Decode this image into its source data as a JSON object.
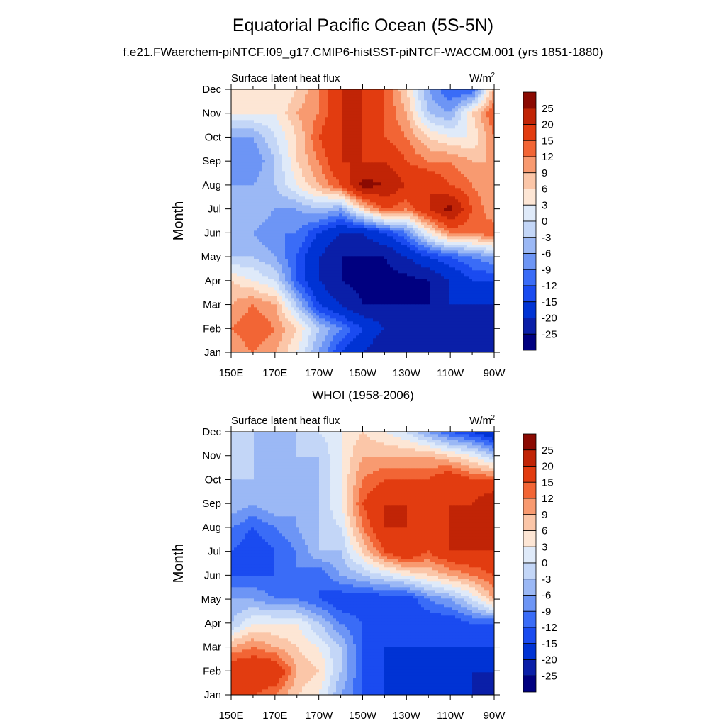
{
  "title": "Equatorial Pacific Ocean (5S-5N)",
  "subtitle": "f.e21.FWaerchem-piNTCF.f09_g17.CMIP6-histSST-piNTCF-WACCM.001 (yrs 1851-1880)",
  "panel2_title": "WHOI (1958-2006)",
  "chart_data": [
    {
      "type": "heatmap",
      "panel": "f.e21.FWaerchem-piNTCF.f09_g17.CMIP6-histSST-piNTCF-WACCM.001 (yrs 1851-1880)",
      "left_label": "Surface latent heat flux",
      "right_label": "W/m",
      "right_label_sup": "2",
      "ylabel": "Month",
      "x_ticks": [
        "150E",
        "170E",
        "170W",
        "150W",
        "130W",
        "110W",
        "90W"
      ],
      "y_ticks": [
        "Jan",
        "Feb",
        "Mar",
        "Apr",
        "May",
        "Jun",
        "Jul",
        "Aug",
        "Sep",
        "Oct",
        "Nov",
        "Dec"
      ],
      "x": [
        150,
        160,
        170,
        180,
        190,
        200,
        210,
        220,
        230,
        240,
        250,
        260,
        270
      ],
      "z": [
        [
          9,
          12,
          9,
          3,
          -6,
          -15,
          -20,
          -25,
          -25,
          -25,
          -25,
          -25,
          -25
        ],
        [
          12,
          15,
          12,
          6,
          -3,
          -9,
          -15,
          -20,
          -20,
          -25,
          -25,
          -25,
          -25
        ],
        [
          9,
          12,
          9,
          -3,
          -15,
          -20,
          -25,
          -25,
          -25,
          -25,
          -20,
          -20,
          -20
        ],
        [
          6,
          3,
          0,
          -12,
          -20,
          -25,
          -27,
          -27,
          -27,
          -25,
          -20,
          -15,
          -15
        ],
        [
          -3,
          -3,
          -6,
          -12,
          -20,
          -25,
          -25,
          -25,
          -20,
          -15,
          -12,
          -9,
          -6
        ],
        [
          -6,
          -6,
          -9,
          -9,
          -15,
          -20,
          -20,
          -15,
          -9,
          3,
          12,
          12,
          15
        ],
        [
          -3,
          -3,
          -6,
          -6,
          -3,
          -6,
          6,
          15,
          12,
          20,
          27,
          15,
          9
        ],
        [
          -6,
          -6,
          -3,
          3,
          9,
          15,
          27,
          25,
          20,
          20,
          15,
          12,
          9
        ],
        [
          -9,
          -9,
          -3,
          6,
          12,
          20,
          20,
          20,
          15,
          12,
          12,
          9,
          9
        ],
        [
          -6,
          -6,
          0,
          6,
          15,
          20,
          20,
          15,
          12,
          6,
          3,
          3,
          12
        ],
        [
          3,
          3,
          3,
          9,
          12,
          20,
          20,
          15,
          9,
          -3,
          -6,
          6,
          15
        ],
        [
          6,
          3,
          3,
          6,
          12,
          20,
          20,
          15,
          6,
          -6,
          -12,
          -12,
          9
        ]
      ],
      "colorbar_labels": [
        "25",
        "20",
        "15",
        "12",
        "9",
        "6",
        "3",
        "0",
        "-3",
        "-6",
        "-9",
        "-12",
        "-15",
        "-20",
        "-25"
      ]
    },
    {
      "type": "heatmap",
      "panel": "WHOI (1958-2006)",
      "left_label": "Surface latent heat flux",
      "right_label": "W/m",
      "right_label_sup": "2",
      "ylabel": "Month",
      "x_ticks": [
        "150E",
        "170E",
        "170W",
        "150W",
        "130W",
        "110W",
        "90W"
      ],
      "y_ticks": [
        "Jan",
        "Feb",
        "Mar",
        "Apr",
        "May",
        "Jun",
        "Jul",
        "Aug",
        "Sep",
        "Oct",
        "Nov",
        "Dec"
      ],
      "x": [
        150,
        160,
        170,
        180,
        190,
        200,
        210,
        220,
        230,
        240,
        250,
        260,
        270
      ],
      "z": [
        [
          15,
          15,
          12,
          6,
          3,
          -6,
          -12,
          -15,
          -20,
          -20,
          -20,
          -20,
          -25
        ],
        [
          20,
          20,
          20,
          9,
          6,
          -3,
          -12,
          -15,
          -20,
          -20,
          -20,
          -20,
          -20
        ],
        [
          9,
          12,
          9,
          6,
          3,
          -3,
          -12,
          -15,
          -15,
          -15,
          -15,
          -15,
          -15
        ],
        [
          -3,
          3,
          3,
          3,
          -3,
          -9,
          -12,
          -15,
          -15,
          -15,
          -15,
          -12,
          -12
        ],
        [
          -6,
          -6,
          -9,
          -9,
          -12,
          -15,
          -15,
          -15,
          -15,
          -9,
          -6,
          0,
          9
        ],
        [
          -12,
          -12,
          -12,
          -9,
          -12,
          -6,
          -3,
          0,
          3,
          6,
          9,
          12,
          15
        ],
        [
          -12,
          -15,
          -12,
          -9,
          -3,
          -3,
          6,
          15,
          20,
          15,
          20,
          20,
          20
        ],
        [
          -9,
          -12,
          -9,
          -6,
          -3,
          0,
          12,
          20,
          20,
          20,
          20,
          20,
          20
        ],
        [
          -3,
          -6,
          -3,
          -6,
          -3,
          3,
          15,
          20,
          20,
          15,
          20,
          20,
          25
        ],
        [
          -3,
          -3,
          -3,
          -6,
          -3,
          3,
          12,
          15,
          15,
          15,
          20,
          15,
          15
        ],
        [
          -3,
          -3,
          -6,
          -3,
          -3,
          3,
          9,
          9,
          9,
          9,
          6,
          3,
          -3
        ],
        [
          -3,
          -3,
          -3,
          -3,
          0,
          3,
          6,
          3,
          0,
          -6,
          -12,
          -15,
          -20
        ]
      ],
      "colorbar_labels": [
        "25",
        "20",
        "15",
        "12",
        "9",
        "6",
        "3",
        "0",
        "-3",
        "-6",
        "-9",
        "-12",
        "-15",
        "-20",
        "-25"
      ]
    }
  ],
  "colormap": {
    "levels": [
      -25,
      -20,
      -15,
      -12,
      -9,
      -6,
      -3,
      0,
      3,
      6,
      9,
      12,
      15,
      20,
      25
    ],
    "colors": [
      "#000080",
      "#0a1fa8",
      "#0033d4",
      "#1a4bf0",
      "#3a6cf7",
      "#6d95f5",
      "#9bb8f5",
      "#c3d6f7",
      "#dfeaf9",
      "#fde6d5",
      "#fbc6a8",
      "#f89a70",
      "#f26535",
      "#e23c10",
      "#c12406",
      "#8b0a02"
    ]
  }
}
